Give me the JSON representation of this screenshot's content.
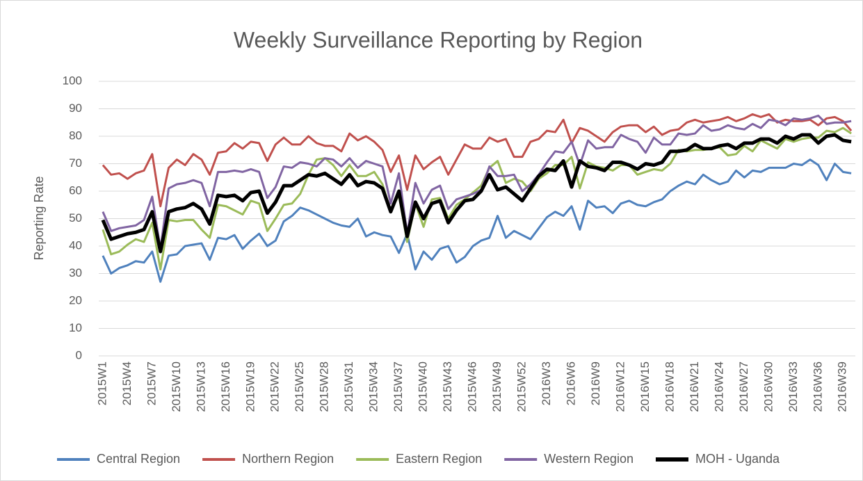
{
  "chart_data": {
    "type": "line",
    "title": "Weekly Surveillance Reporting by Region",
    "y_label": "Reporting Rate",
    "categories": [
      "2015W1",
      null,
      null,
      "2015W4",
      null,
      null,
      "2015W7",
      null,
      null,
      "2015W10",
      null,
      null,
      "2015W13",
      null,
      null,
      "2015W16",
      null,
      null,
      "2015W19",
      null,
      null,
      "2015W22",
      null,
      null,
      "2015W25",
      null,
      null,
      "2015W28",
      null,
      null,
      "2015W31",
      null,
      null,
      "2015W34",
      null,
      null,
      "2015W37",
      null,
      null,
      "2015W40",
      null,
      null,
      "2015W43",
      null,
      null,
      "2015W46",
      null,
      null,
      "2015W49",
      null,
      null,
      "2015W52",
      null,
      null,
      "2016W3",
      null,
      null,
      "2016W6",
      null,
      null,
      "2016W9",
      null,
      null,
      "2016W12",
      null,
      null,
      "2016W15",
      null,
      null,
      "2016W18",
      null,
      null,
      "2016W21",
      null,
      null,
      "2016W24",
      null,
      null,
      "2016W27",
      null,
      null,
      "2016W30",
      null,
      null,
      "2016W33",
      null,
      null,
      "2016W36",
      null,
      null,
      "2016W39",
      null
    ],
    "series": [
      {
        "name": "Central Region",
        "color": "#4f81bd",
        "width": 3,
        "values": [
          36.5,
          30,
          32,
          33,
          34.5,
          34,
          38,
          27,
          36.5,
          37,
          40,
          40.5,
          41,
          35,
          43,
          42.5,
          44,
          39,
          42,
          44.5,
          40,
          42,
          49,
          51,
          54,
          53,
          51.5,
          50,
          48.5,
          47.5,
          47,
          50,
          43.5,
          45,
          44,
          43.5,
          37.5,
          44.5,
          31.5,
          38,
          35,
          39,
          40,
          34,
          36,
          40,
          42,
          43,
          51,
          43,
          45.5,
          44,
          42.5,
          46.5,
          50.5,
          52.5,
          51,
          54.5,
          46,
          56.5,
          54,
          54.5,
          52,
          55.5,
          56.5,
          55,
          54.5,
          56,
          57,
          60,
          62,
          63.5,
          62.5,
          66,
          64,
          62.5,
          63.5,
          67.5,
          65,
          67.5,
          67,
          68.5,
          68.5,
          68.5,
          70,
          69.5,
          71.5,
          69.5,
          64,
          70,
          67,
          66.5
        ]
      },
      {
        "name": "Northern Region",
        "color": "#c0504d",
        "width": 3,
        "values": [
          69.5,
          66,
          66.5,
          64.5,
          66.5,
          67.5,
          73.5,
          54.5,
          68.5,
          71.5,
          69.5,
          73.5,
          71.5,
          66,
          74,
          74.5,
          77.5,
          75.5,
          78,
          77.5,
          71,
          77,
          79.5,
          77,
          77,
          80,
          77.5,
          76.5,
          76.5,
          74.5,
          81,
          78.5,
          80,
          78,
          75,
          67,
          73,
          60.5,
          73,
          68,
          70.5,
          72.5,
          66,
          71.5,
          77,
          75.5,
          75.5,
          79.5,
          78,
          79,
          72.5,
          72.5,
          78,
          79,
          82,
          81.5,
          86,
          77.5,
          83,
          82,
          80,
          78,
          81.5,
          83.5,
          84,
          84,
          81.5,
          83.5,
          80.5,
          82,
          82.5,
          85,
          86,
          85,
          85.5,
          86,
          87,
          85.5,
          86.5,
          88,
          87,
          88,
          85,
          86,
          85.5,
          85.5,
          86,
          84,
          86.5,
          87,
          85.5,
          82
        ]
      },
      {
        "name": "Eastern Region",
        "color": "#9bbb59",
        "width": 3,
        "values": [
          46,
          37,
          38,
          40.5,
          42.5,
          41.5,
          48.5,
          31.5,
          49.5,
          49,
          49.5,
          49.5,
          46,
          43,
          55,
          54.5,
          53,
          51.5,
          56.5,
          55.5,
          45.5,
          50,
          55,
          55.5,
          59,
          66,
          71.5,
          72,
          69.5,
          65.5,
          69.5,
          65.5,
          65.5,
          67,
          62.5,
          53,
          58.5,
          41.5,
          55.5,
          47,
          57,
          57.5,
          50,
          55,
          57,
          59.5,
          62,
          68.5,
          71,
          63,
          64.5,
          63.5,
          60,
          64.5,
          66.5,
          69.5,
          69.5,
          72.5,
          61,
          70.5,
          69,
          68.5,
          67.5,
          69.5,
          69.5,
          66,
          67,
          68,
          67.5,
          70,
          75,
          74.5,
          75,
          75,
          75.5,
          76,
          73,
          73.5,
          76.5,
          74.5,
          78.5,
          77,
          75.5,
          79,
          78,
          79,
          79.5,
          79.5,
          82,
          81.5,
          83,
          81
        ]
      },
      {
        "name": "Western Region",
        "color": "#8064a2",
        "width": 3,
        "values": [
          52.5,
          45.5,
          46.5,
          47,
          47.5,
          49.5,
          58,
          39,
          61,
          62.5,
          63,
          64,
          63,
          54.5,
          67,
          67,
          67.5,
          67,
          68,
          67,
          57.5,
          61.5,
          69,
          68.5,
          70.5,
          70,
          69,
          72,
          71.5,
          69,
          72,
          68.5,
          71,
          70,
          69,
          55.5,
          66.5,
          44.5,
          63,
          55.5,
          60.5,
          62,
          53.5,
          57,
          58,
          59,
          60.5,
          69,
          65.5,
          65.5,
          66,
          60,
          62.5,
          66,
          70.5,
          74.5,
          74,
          78,
          69.5,
          78.5,
          75.5,
          76,
          76,
          80.5,
          79,
          78,
          74,
          79.5,
          77,
          77,
          81,
          80.5,
          81,
          84,
          82,
          82.5,
          84,
          83,
          82.5,
          84.5,
          83,
          86,
          85.5,
          84,
          86.5,
          86,
          86.5,
          87.5,
          84.5,
          85,
          85,
          85.5
        ]
      },
      {
        "name": "MOH - Uganda",
        "color": "#000000",
        "width": 5,
        "values": [
          49.5,
          42.5,
          43.5,
          44.5,
          45,
          46,
          52.5,
          38,
          52.5,
          53.5,
          54,
          55.5,
          53.5,
          48,
          58.5,
          58,
          58.5,
          56.5,
          59.5,
          60,
          52,
          56,
          62,
          62,
          64,
          66,
          65.5,
          66.5,
          64.5,
          62.5,
          66,
          62,
          63.5,
          63,
          61,
          52.5,
          60,
          43.5,
          56,
          50,
          55.5,
          56.5,
          48.5,
          53,
          56.5,
          57,
          60,
          66,
          60.5,
          61.5,
          59,
          56.5,
          61,
          65.5,
          68,
          67.5,
          71,
          61.5,
          71,
          69,
          68.5,
          67.5,
          70.5,
          70.5,
          69.5,
          68,
          70,
          69.5,
          70.5,
          74.5,
          74.5,
          75,
          77,
          75.5,
          75.5,
          76.5,
          77,
          75.5,
          77.5,
          77.5,
          79,
          79,
          77.5,
          80,
          79,
          80.5,
          80.5,
          77.5,
          80,
          80.5,
          78.5,
          78
        ]
      }
    ],
    "ylim": [
      0,
      100
    ],
    "yticks": [
      0,
      10,
      20,
      30,
      40,
      50,
      60,
      70,
      80,
      90,
      100
    ],
    "grid": true,
    "legend": "bottom"
  }
}
